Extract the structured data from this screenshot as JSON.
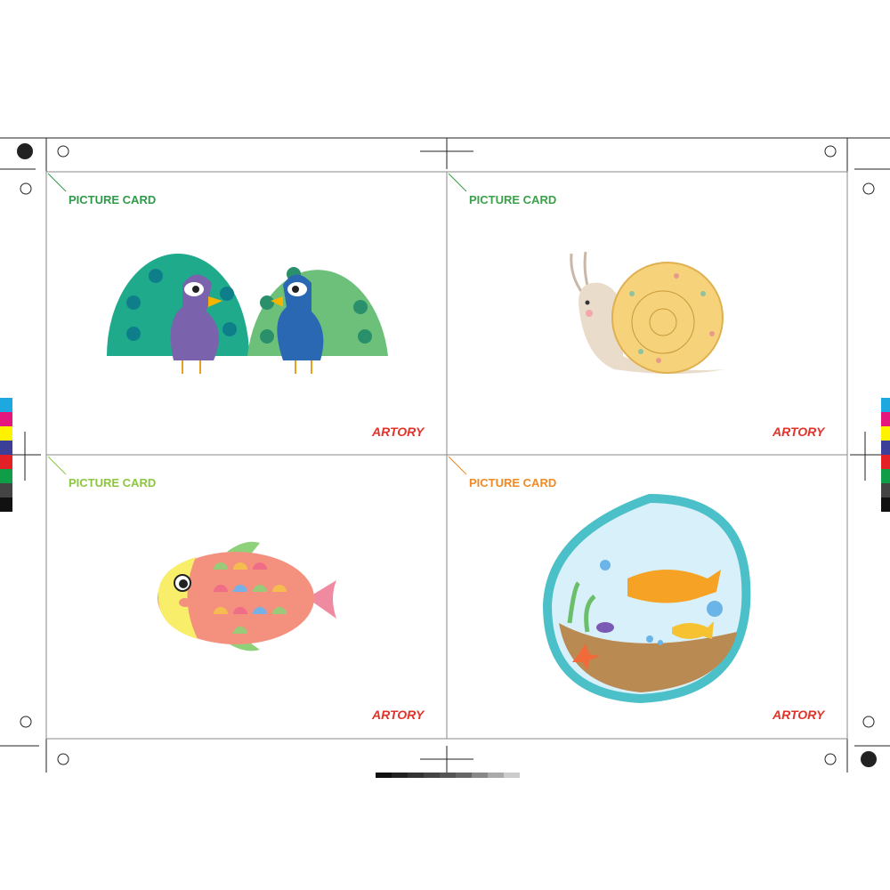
{
  "cards": [
    {
      "label": "PICTURE CARD",
      "color": "#2e9a4a",
      "logo": "ARTORY"
    },
    {
      "label": "PICTURE CARD",
      "color": "#3aa14a",
      "logo": "ARTORY"
    },
    {
      "label": "PICTURE CARD",
      "color": "#8cc63f",
      "logo": "ARTORY"
    },
    {
      "label": "PICTURE CARD",
      "color": "#f08a24",
      "logo": "ARTORY"
    }
  ]
}
